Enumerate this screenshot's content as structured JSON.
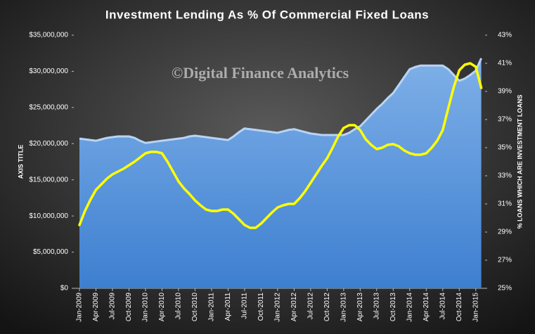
{
  "chart_data": {
    "type": "area-line",
    "title": "Investment Lending As % Of Commercial Fixed Loans",
    "watermark": "©Digital Finance Analytics",
    "y_label": "AXIS TITLE",
    "y2_label": "% LOANS WHICH ARE INVESTMENT LOANS",
    "categories": [
      "Jan-2009",
      null,
      null,
      "Apr-2009",
      null,
      null,
      "Jul-2009",
      null,
      null,
      "Oct-2009",
      null,
      null,
      "Jan-2010",
      null,
      null,
      "Apr-2010",
      null,
      null,
      "Jul-2010",
      null,
      null,
      "Oct-2010",
      null,
      null,
      "Jan-2011",
      null,
      null,
      "Apr-2011",
      null,
      null,
      "Jul-2011",
      null,
      null,
      "Oct-2011",
      null,
      null,
      "Jan-2012",
      null,
      null,
      "Apr-2012",
      null,
      null,
      "Jul-2012",
      null,
      null,
      "Oct-2012",
      null,
      null,
      "Jan-2013",
      null,
      null,
      "Apr-2013",
      null,
      null,
      "Jul-2013",
      null,
      null,
      "Oct-2013",
      null,
      null,
      "Jan-2014",
      null,
      null,
      "Apr-2014",
      null,
      null,
      "Jul-2014",
      null,
      null,
      "Oct-2014",
      null,
      null,
      "Jan-2015",
      null
    ],
    "series": [
      {
        "kind": "area",
        "color": "#5b9bd5",
        "axis": "y",
        "values": [
          20700000,
          20600000,
          20500000,
          20400000,
          20600000,
          20800000,
          20900000,
          21000000,
          21000000,
          21000000,
          20800000,
          20400000,
          20100000,
          20200000,
          20300000,
          20400000,
          20500000,
          20600000,
          20700000,
          20800000,
          21000000,
          21100000,
          21000000,
          20900000,
          20800000,
          20700000,
          20600000,
          20500000,
          21000000,
          21600000,
          22100000,
          22000000,
          21900000,
          21800000,
          21700000,
          21600000,
          21500000,
          21700000,
          21900000,
          22000000,
          21800000,
          21600000,
          21400000,
          21300000,
          21200000,
          21200000,
          21200000,
          21200000,
          21200000,
          21500000,
          22000000,
          22400000,
          23200000,
          24000000,
          24800000,
          25500000,
          26300000,
          27000000,
          28100000,
          29200000,
          30300000,
          30600000,
          30800000,
          30800000,
          30800000,
          30800000,
          30800000,
          30300000,
          29500000,
          28700000,
          29000000,
          29500000,
          30100000,
          31800000
        ]
      },
      {
        "kind": "line",
        "color": "#ffff00",
        "axis": "y2",
        "values": [
          29.5,
          30.5,
          31.3,
          32.0,
          32.4,
          32.8,
          33.1,
          33.3,
          33.5,
          33.75,
          34.0,
          34.3,
          34.6,
          34.7,
          34.7,
          34.6,
          34.0,
          33.3,
          32.6,
          32.1,
          31.7,
          31.25,
          30.9,
          30.6,
          30.5,
          30.5,
          30.6,
          30.6,
          30.3,
          29.9,
          29.5,
          29.3,
          29.3,
          29.6,
          30.0,
          30.4,
          30.75,
          30.9,
          31.0,
          31.0,
          31.4,
          31.9,
          32.5,
          33.1,
          33.7,
          34.25,
          35.0,
          35.8,
          36.4,
          36.6,
          36.6,
          36.25,
          35.6,
          35.2,
          34.9,
          35.0,
          35.2,
          35.25,
          35.1,
          34.8,
          34.6,
          34.5,
          34.5,
          34.6,
          35.0,
          35.5,
          36.25,
          37.8,
          39.3,
          40.5,
          40.9,
          41.0,
          40.75,
          39.25
        ]
      }
    ],
    "ylim": [
      0,
      35000000
    ],
    "yticks": [
      {
        "value": 0,
        "label": "$0"
      },
      {
        "value": 5000000,
        "label": "$5,000,000"
      },
      {
        "value": 10000000,
        "label": "$10,000,000"
      },
      {
        "value": 15000000,
        "label": "$15,000,000"
      },
      {
        "value": 20000000,
        "label": "$20,000,000"
      },
      {
        "value": 25000000,
        "label": "$25,000,000"
      },
      {
        "value": 30000000,
        "label": "$30,000,000"
      },
      {
        "value": 35000000,
        "label": "$35,000,000"
      }
    ],
    "y2lim": [
      25,
      43
    ],
    "y2ticks": [
      {
        "value": 25,
        "label": "25%"
      },
      {
        "value": 27,
        "label": "27%"
      },
      {
        "value": 29,
        "label": "29%"
      },
      {
        "value": 31,
        "label": "31%"
      },
      {
        "value": 33,
        "label": "33%"
      },
      {
        "value": 35,
        "label": "35%"
      },
      {
        "value": 37,
        "label": "37%"
      },
      {
        "value": 39,
        "label": "39%"
      },
      {
        "value": 41,
        "label": "41%"
      },
      {
        "value": 43,
        "label": "43%"
      }
    ]
  }
}
